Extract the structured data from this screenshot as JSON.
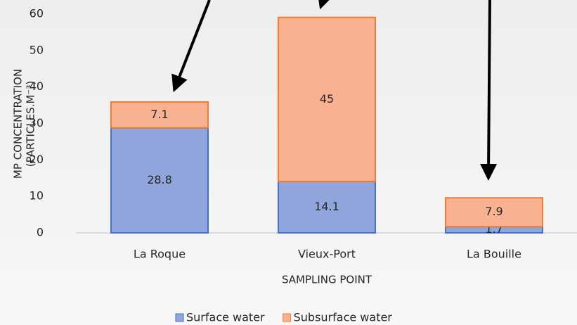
{
  "chart_data": {
    "type": "stacked_bar",
    "ylabel": [
      "MP CONCENTRATION",
      "(PARTICLES.M⁻³)"
    ],
    "xlabel": "SAMPLING POINT",
    "categories": [
      "La Roque",
      "Vieux-Port",
      "La Bouille"
    ],
    "series": [
      {
        "name": "Surface water",
        "color": "#8fa5dc",
        "values": [
          28.8,
          14.1,
          1.7
        ]
      },
      {
        "name": "Subsurface water",
        "color": "#f8b291",
        "values": [
          7.1,
          45,
          7.9
        ]
      }
    ],
    "ylim": [
      0,
      60
    ],
    "yticks": [
      0,
      10,
      20,
      30,
      40,
      50,
      60
    ]
  }
}
